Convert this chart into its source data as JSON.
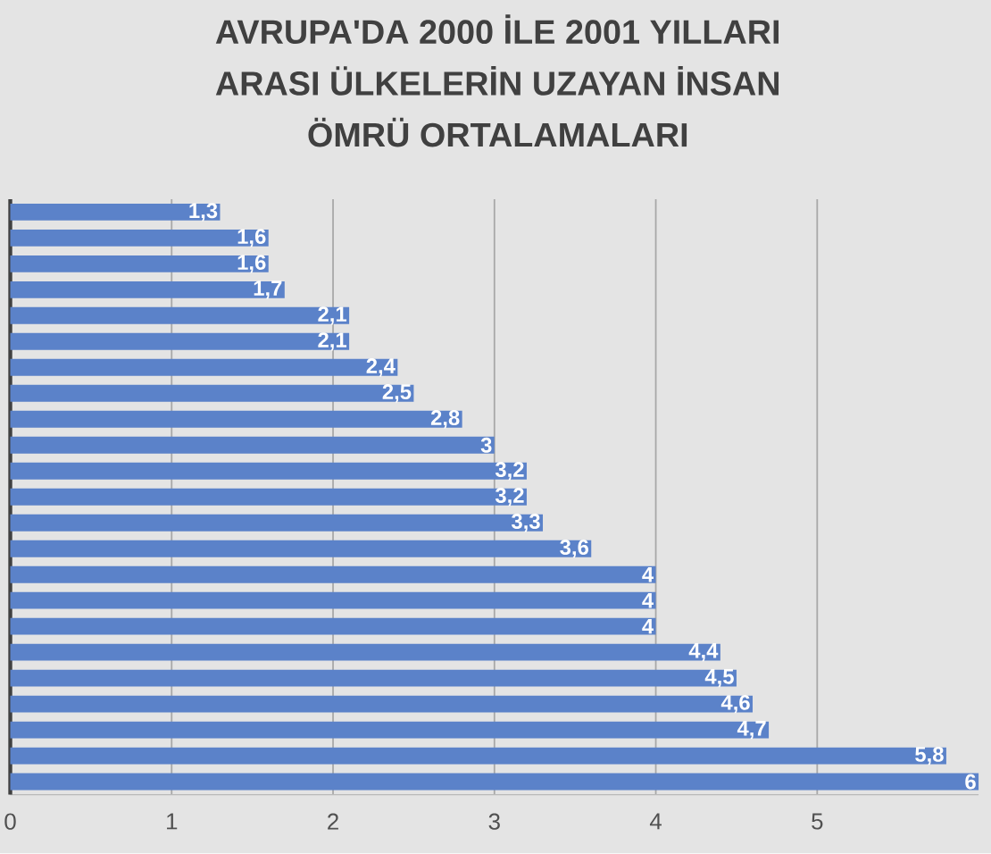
{
  "chart_data": {
    "type": "bar",
    "orientation": "horizontal",
    "title": "AVRUPA'DA 2000 İLE 2001 YILLARI ARASI ÜLKELERİN UZAYAN İNSAN ÖMRÜ ORTALAMALARI",
    "categories": [
      null,
      null,
      null,
      null,
      null,
      null,
      null,
      null,
      null,
      null,
      null,
      null,
      null,
      null,
      null,
      null,
      null,
      null,
      null,
      null,
      null,
      null,
      null
    ],
    "values": [
      1.3,
      1.6,
      1.6,
      1.7,
      2.1,
      2.1,
      2.4,
      2.5,
      2.8,
      3,
      3.2,
      3.2,
      3.3,
      3.6,
      4,
      4,
      4,
      4.4,
      4.5,
      4.6,
      4.7,
      5.8,
      6
    ],
    "value_labels": [
      "1,3",
      "1,6",
      "1,6",
      "1,7",
      "2,1",
      "2,1",
      "2,4",
      "2,5",
      "2,8",
      "3",
      "3,2",
      "3,2",
      "3,3",
      "3,6",
      "4",
      "4",
      "4",
      "4,4",
      "4,5",
      "4,6",
      "4,7",
      "5,8",
      "6"
    ],
    "color": "#5b82c9",
    "xlim": [
      0,
      6
    ],
    "xticks": [
      0,
      1,
      2,
      3,
      4,
      5
    ],
    "grid": "x"
  }
}
